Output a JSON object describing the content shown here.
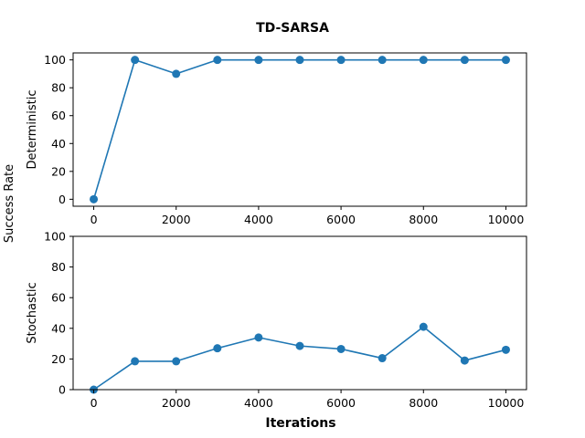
{
  "figure": {
    "title": "TD-SARSA",
    "shared_ylabel": "Success Rate",
    "xlabel": "Iterations"
  },
  "colors": {
    "series": "#1f77b4",
    "axes": "#000000"
  },
  "chart_data": [
    {
      "type": "line",
      "markers": true,
      "ylabel": "Deterministic",
      "x": [
        0,
        1000,
        2000,
        3000,
        4000,
        5000,
        6000,
        7000,
        8000,
        9000,
        10000
      ],
      "values": [
        0,
        100,
        90,
        100,
        100,
        100,
        100,
        100,
        100,
        100,
        100
      ],
      "xlim": [
        -500,
        10500
      ],
      "ylim": [
        -5,
        105
      ],
      "xticks": [
        0,
        2000,
        4000,
        6000,
        8000,
        10000
      ],
      "yticks": [
        0,
        20,
        40,
        60,
        80,
        100
      ],
      "grid": false
    },
    {
      "type": "line",
      "markers": true,
      "ylabel": "Stochastic",
      "x": [
        0,
        1000,
        2000,
        3000,
        4000,
        5000,
        6000,
        7000,
        8000,
        9000,
        10000
      ],
      "values": [
        0,
        18.5,
        18.5,
        27,
        34,
        28.5,
        26.5,
        20.5,
        41,
        19,
        26
      ],
      "xlim": [
        -500,
        10500
      ],
      "ylim": [
        0,
        100
      ],
      "xticks": [
        0,
        2000,
        4000,
        6000,
        8000,
        10000
      ],
      "yticks": [
        0,
        20,
        40,
        60,
        80,
        100
      ],
      "grid": false
    }
  ]
}
